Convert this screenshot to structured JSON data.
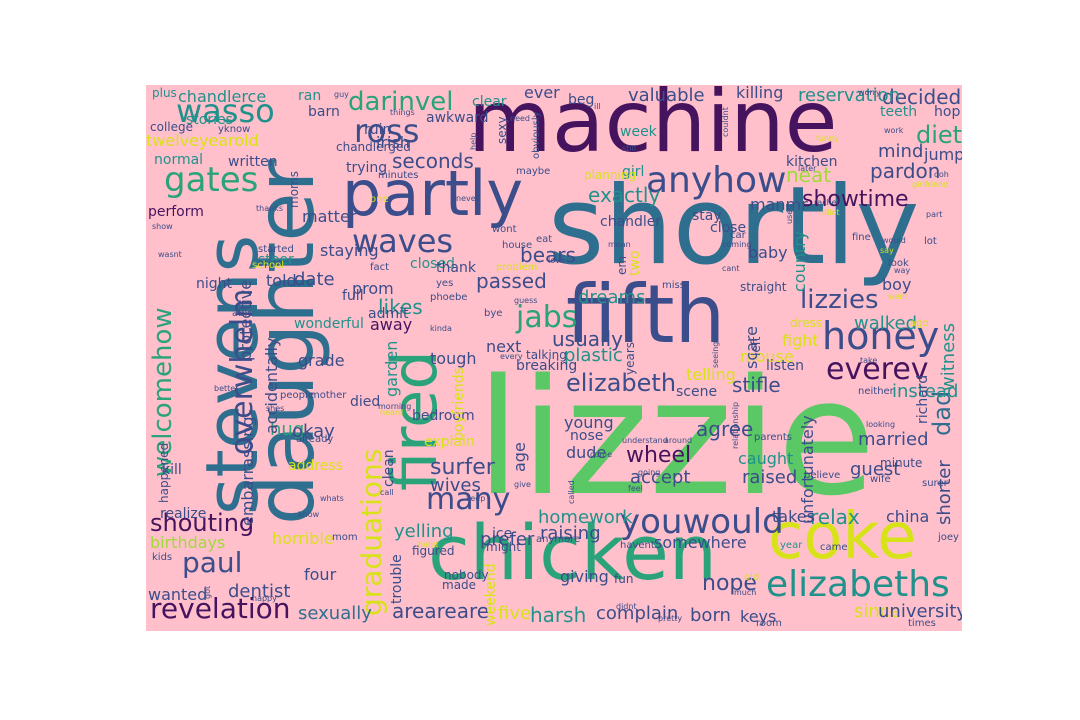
{
  "palette": {
    "background": "#ffc0cb",
    "dark_purple": "#46145f",
    "indigo": "#3b4d8a",
    "steel_blue": "#2e6e8e",
    "teal": "#21918c",
    "sea_green": "#2aa37a",
    "green": "#5ac864",
    "lime": "#a0da39",
    "yellow": "#d8e219"
  },
  "words": [
    {
      "text": "lizzie",
      "color": "green"
    },
    {
      "text": "shortly",
      "color": "steel_blue"
    },
    {
      "text": "machine",
      "color": "dark_purple"
    },
    {
      "text": "daughter",
      "color": "steel_blue"
    },
    {
      "text": "chicken",
      "color": "sea_green"
    },
    {
      "text": "fifth",
      "color": "indigo"
    },
    {
      "text": "stevens",
      "color": "steel_blue"
    },
    {
      "text": "partly",
      "color": "indigo"
    },
    {
      "text": "coke",
      "color": "yellow"
    },
    {
      "text": "fired",
      "color": "sea_green"
    },
    {
      "text": "honey",
      "color": "indigo"
    },
    {
      "text": "anyhow",
      "color": "indigo"
    },
    {
      "text": "elizabeths",
      "color": "teal"
    },
    {
      "text": "youwould",
      "color": "indigo"
    },
    {
      "text": "waves",
      "color": "indigo"
    },
    {
      "text": "gates",
      "color": "sea_green"
    },
    {
      "text": "ross",
      "color": "indigo"
    },
    {
      "text": "wasso",
      "color": "teal"
    },
    {
      "text": "overwhelm",
      "color": "indigo"
    },
    {
      "text": "welcomehow",
      "color": "sea_green"
    },
    {
      "text": "revelation",
      "color": "dark_purple"
    },
    {
      "text": "paul",
      "color": "indigo"
    },
    {
      "text": "jabs",
      "color": "sea_green"
    },
    {
      "text": "many",
      "color": "indigo"
    },
    {
      "text": "everev",
      "color": "dark_purple"
    },
    {
      "text": "lizzies",
      "color": "indigo"
    },
    {
      "text": "elizabeth",
      "color": "indigo"
    },
    {
      "text": "graduations",
      "color": "yellow"
    },
    {
      "text": "shouting",
      "color": "dark_purple"
    },
    {
      "text": "darinvel",
      "color": "sea_green"
    },
    {
      "text": "diet",
      "color": "sea_green"
    },
    {
      "text": "showtime",
      "color": "dark_purple"
    },
    {
      "text": "dad",
      "color": "steel_blue"
    },
    {
      "text": "surfer",
      "color": "indigo"
    },
    {
      "text": "wheel",
      "color": "dark_purple"
    },
    {
      "text": "harsh",
      "color": "teal"
    },
    {
      "text": "five",
      "color": "yellow"
    },
    {
      "text": "areareare",
      "color": "indigo"
    },
    {
      "text": "sexually",
      "color": "steel_blue"
    },
    {
      "text": "nope",
      "color": "indigo"
    },
    {
      "text": "since",
      "color": "yellow"
    },
    {
      "text": "university",
      "color": "indigo"
    },
    {
      "text": "complain",
      "color": "indigo"
    },
    {
      "text": "born",
      "color": "indigo"
    },
    {
      "text": "keys",
      "color": "indigo"
    },
    {
      "text": "decided",
      "color": "indigo"
    },
    {
      "text": "reservation",
      "color": "teal"
    },
    {
      "text": "valuable",
      "color": "indigo"
    },
    {
      "text": "killing",
      "color": "indigo"
    },
    {
      "text": "seconds",
      "color": "indigo"
    },
    {
      "text": "exactly",
      "color": "teal"
    },
    {
      "text": "pardon",
      "color": "indigo"
    },
    {
      "text": "neat",
      "color": "lime"
    },
    {
      "text": "mind",
      "color": "indigo"
    },
    {
      "text": "jump",
      "color": "indigo"
    },
    {
      "text": "stifle",
      "color": "indigo"
    },
    {
      "text": "usually",
      "color": "indigo"
    },
    {
      "text": "passed",
      "color": "indigo"
    },
    {
      "text": "bears",
      "color": "indigo"
    },
    {
      "text": "likes",
      "color": "teal"
    },
    {
      "text": "date",
      "color": "indigo"
    },
    {
      "text": "dreams",
      "color": "teal"
    },
    {
      "text": "plastic",
      "color": "teal"
    },
    {
      "text": "walked",
      "color": "teal"
    },
    {
      "text": "witness",
      "color": "teal"
    },
    {
      "text": "instead",
      "color": "teal"
    },
    {
      "text": "boy",
      "color": "indigo"
    },
    {
      "text": "agree",
      "color": "indigo"
    },
    {
      "text": "accept",
      "color": "indigo"
    },
    {
      "text": "raised",
      "color": "indigo"
    },
    {
      "text": "caught",
      "color": "teal"
    },
    {
      "text": "guest",
      "color": "indigo"
    },
    {
      "text": "relax",
      "color": "teal"
    },
    {
      "text": "takes",
      "color": "indigo"
    },
    {
      "text": "china",
      "color": "indigo"
    },
    {
      "text": "married",
      "color": "indigo"
    },
    {
      "text": "unfortunately",
      "color": "indigo"
    },
    {
      "text": "shorter",
      "color": "indigo"
    },
    {
      "text": "wives",
      "color": "indigo"
    },
    {
      "text": "homework",
      "color": "teal"
    },
    {
      "text": "yelling",
      "color": "teal"
    },
    {
      "text": "raising",
      "color": "indigo"
    },
    {
      "text": "prefer",
      "color": "indigo"
    },
    {
      "text": "somewhere",
      "color": "indigo"
    },
    {
      "text": "giving",
      "color": "indigo"
    },
    {
      "text": "dentist",
      "color": "indigo"
    },
    {
      "text": "wanted",
      "color": "indigo"
    },
    {
      "text": "horrible",
      "color": "yellow"
    },
    {
      "text": "birthdays",
      "color": "lime"
    },
    {
      "text": "realize",
      "color": "indigo"
    },
    {
      "text": "embarrassing",
      "color": "indigo"
    },
    {
      "text": "four",
      "color": "indigo"
    },
    {
      "text": "trouble",
      "color": "indigo"
    },
    {
      "text": "clean",
      "color": "indigo"
    },
    {
      "text": "address",
      "color": "yellow"
    },
    {
      "text": "hug",
      "color": "sea_green"
    },
    {
      "text": "okay",
      "color": "indigo"
    },
    {
      "text": "grade",
      "color": "indigo"
    },
    {
      "text": "accidentally",
      "color": "indigo"
    },
    {
      "text": "protective",
      "color": "indigo"
    },
    {
      "text": "night",
      "color": "indigo"
    },
    {
      "text": "told",
      "color": "indigo"
    },
    {
      "text": "staying",
      "color": "indigo"
    },
    {
      "text": "matter",
      "color": "indigo"
    },
    {
      "text": "perform",
      "color": "dark_purple"
    },
    {
      "text": "normal",
      "color": "teal"
    },
    {
      "text": "twelveyearold",
      "color": "yellow"
    },
    {
      "text": "chandlerce",
      "color": "teal"
    },
    {
      "text": "stories",
      "color": "teal"
    },
    {
      "text": "college",
      "color": "indigo"
    },
    {
      "text": "plus",
      "color": "teal"
    },
    {
      "text": "ran",
      "color": "teal"
    },
    {
      "text": "barn",
      "color": "indigo"
    },
    {
      "text": "irish",
      "color": "indigo"
    },
    {
      "text": "ruin",
      "color": "indigo"
    },
    {
      "text": "trying",
      "color": "indigo"
    },
    {
      "text": "written",
      "color": "indigo"
    },
    {
      "text": "prom",
      "color": "indigo"
    },
    {
      "text": "admit",
      "color": "indigo"
    },
    {
      "text": "away",
      "color": "dark_purple"
    },
    {
      "text": "garden",
      "color": "teal"
    },
    {
      "text": "next",
      "color": "indigo"
    },
    {
      "text": "tough",
      "color": "indigo"
    },
    {
      "text": "died",
      "color": "indigo"
    },
    {
      "text": "bedroom",
      "color": "indigo"
    },
    {
      "text": "young",
      "color": "indigo"
    },
    {
      "text": "nose",
      "color": "indigo"
    },
    {
      "text": "dude",
      "color": "indigo"
    },
    {
      "text": "age",
      "color": "indigo"
    },
    {
      "text": "ice",
      "color": "indigo"
    },
    {
      "text": "scene",
      "color": "indigo"
    },
    {
      "text": "telling",
      "color": "yellow"
    },
    {
      "text": "mouse",
      "color": "yellow"
    },
    {
      "text": "scare",
      "color": "indigo"
    },
    {
      "text": "fight",
      "color": "yellow"
    },
    {
      "text": "country",
      "color": "teal"
    },
    {
      "text": "baby",
      "color": "indigo"
    },
    {
      "text": "kitchen",
      "color": "indigo"
    },
    {
      "text": "manmr",
      "color": "indigo"
    },
    {
      "text": "close",
      "color": "indigo"
    },
    {
      "text": "stay",
      "color": "indigo"
    },
    {
      "text": "girl",
      "color": "teal"
    },
    {
      "text": "chandler",
      "color": "indigo"
    },
    {
      "text": "week",
      "color": "teal"
    },
    {
      "text": "ever",
      "color": "indigo"
    },
    {
      "text": "beg",
      "color": "indigo"
    },
    {
      "text": "clear",
      "color": "teal"
    },
    {
      "text": "awkward",
      "color": "indigo"
    },
    {
      "text": "teeth",
      "color": "teal"
    },
    {
      "text": "hop",
      "color": "indigo"
    },
    {
      "text": "listen",
      "color": "indigo"
    },
    {
      "text": "full",
      "color": "indigo"
    },
    {
      "text": "closed",
      "color": "teal"
    },
    {
      "text": "thank",
      "color": "indigo"
    },
    {
      "text": "wonderful",
      "color": "teal"
    },
    {
      "text": "boyfriends",
      "color": "yellow"
    },
    {
      "text": "breaking",
      "color": "indigo"
    },
    {
      "text": "explain",
      "color": "yellow"
    },
    {
      "text": "weekend",
      "color": "yellow"
    },
    {
      "text": "richard",
      "color": "indigo"
    },
    {
      "text": "kill",
      "color": "indigo"
    },
    {
      "text": "happened",
      "color": "indigo"
    },
    {
      "text": "steer",
      "color": "teal"
    },
    {
      "text": "two",
      "color": "yellow"
    },
    {
      "text": "em",
      "color": "indigo"
    },
    {
      "text": "chandlerged",
      "color": "indigo"
    },
    {
      "text": "minute",
      "color": "indigo"
    },
    {
      "text": "figured",
      "color": "indigo"
    },
    {
      "text": "nobody",
      "color": "indigo"
    },
    {
      "text": "made",
      "color": "indigo"
    },
    {
      "text": "fun",
      "color": "indigo"
    },
    {
      "text": "might",
      "color": "indigo"
    },
    {
      "text": "planning",
      "color": "yellow"
    },
    {
      "text": "talking",
      "color": "indigo"
    },
    {
      "text": "years",
      "color": "indigo"
    },
    {
      "text": "yknow",
      "color": "indigo"
    },
    {
      "text": "minutes",
      "color": "indigo"
    },
    {
      "text": "moms",
      "color": "indigo"
    },
    {
      "text": "maybe",
      "color": "indigo"
    },
    {
      "text": "obviously",
      "color": "indigo"
    },
    {
      "text": "sexy",
      "color": "indigo"
    },
    {
      "text": "house",
      "color": "indigo"
    },
    {
      "text": "eat",
      "color": "indigo"
    },
    {
      "text": "wont",
      "color": "indigo"
    },
    {
      "text": "problem",
      "color": "yellow"
    },
    {
      "text": "love",
      "color": "indigo"
    },
    {
      "text": "miss",
      "color": "indigo"
    },
    {
      "text": "straight",
      "color": "indigo"
    },
    {
      "text": "left",
      "color": "indigo"
    },
    {
      "text": "dress",
      "color": "yellow"
    },
    {
      "text": "fine",
      "color": "indigo"
    },
    {
      "text": "look",
      "color": "indigo"
    },
    {
      "text": "lot",
      "color": "indigo"
    },
    {
      "text": "ago",
      "color": "yellow"
    },
    {
      "text": "neither",
      "color": "indigo"
    },
    {
      "text": "people",
      "color": "indigo"
    },
    {
      "text": "mother",
      "color": "indigo"
    },
    {
      "text": "already",
      "color": "indigo"
    },
    {
      "text": "parents",
      "color": "indigo"
    },
    {
      "text": "believe",
      "color": "indigo"
    },
    {
      "text": "wife",
      "color": "indigo"
    },
    {
      "text": "surer",
      "color": "indigo"
    },
    {
      "text": "joey",
      "color": "indigo"
    },
    {
      "text": "times",
      "color": "indigo"
    },
    {
      "text": "room",
      "color": "indigo"
    },
    {
      "text": "came",
      "color": "indigo"
    },
    {
      "text": "year",
      "color": "teal"
    },
    {
      "text": "havent",
      "color": "indigo"
    },
    {
      "text": "anymore",
      "color": "indigo"
    },
    {
      "text": "kids",
      "color": "indigo"
    },
    {
      "text": "mom",
      "color": "indigo"
    },
    {
      "text": "know",
      "color": "indigo"
    },
    {
      "text": "worry",
      "color": "indigo"
    },
    {
      "text": "work",
      "color": "indigo"
    },
    {
      "text": "girlfriend",
      "color": "yellow"
    },
    {
      "text": "part",
      "color": "indigo"
    },
    {
      "text": "ooh",
      "color": "indigo"
    },
    {
      "text": "guy",
      "color": "indigo"
    },
    {
      "text": "things",
      "color": "indigo"
    },
    {
      "text": "help",
      "color": "indigo"
    },
    {
      "text": "show",
      "color": "indigo"
    },
    {
      "text": "wasnt",
      "color": "indigo"
    },
    {
      "text": "started",
      "color": "indigo"
    },
    {
      "text": "open",
      "color": "indigo"
    },
    {
      "text": "school",
      "color": "yellow"
    },
    {
      "text": "able",
      "color": "indigo"
    },
    {
      "text": "fact",
      "color": "indigo"
    },
    {
      "text": "yes",
      "color": "indigo"
    },
    {
      "text": "phoebe",
      "color": "indigo"
    },
    {
      "text": "bye",
      "color": "indigo"
    },
    {
      "text": "guess",
      "color": "indigo"
    },
    {
      "text": "mean",
      "color": "indigo"
    },
    {
      "text": "coming",
      "color": "indigo"
    },
    {
      "text": "car",
      "color": "indigo"
    },
    {
      "text": "cant",
      "color": "indigo"
    },
    {
      "text": "seeing",
      "color": "indigo"
    },
    {
      "text": "take",
      "color": "indigo"
    },
    {
      "text": "way",
      "color": "indigo"
    },
    {
      "text": "say",
      "color": "yellow"
    },
    {
      "text": "would",
      "color": "indigo"
    },
    {
      "text": "went",
      "color": "yellow"
    },
    {
      "text": "funny",
      "color": "yellow"
    },
    {
      "text": "rachel",
      "color": "indigo"
    },
    {
      "text": "idiot",
      "color": "yellow"
    },
    {
      "text": "still",
      "color": "indigo"
    },
    {
      "text": "couldnt",
      "color": "indigo"
    },
    {
      "text": "ill",
      "color": "indigo"
    },
    {
      "text": "understand",
      "color": "indigo"
    },
    {
      "text": "around",
      "color": "indigo"
    },
    {
      "text": "going",
      "color": "indigo"
    },
    {
      "text": "feel",
      "color": "indigo"
    },
    {
      "text": "called",
      "color": "indigo"
    },
    {
      "text": "give",
      "color": "indigo"
    },
    {
      "text": "come",
      "color": "indigo"
    },
    {
      "text": "didnt",
      "color": "indigo"
    },
    {
      "text": "pretty",
      "color": "indigo"
    },
    {
      "text": "old",
      "color": "yellow"
    },
    {
      "text": "much",
      "color": "indigo"
    },
    {
      "text": "looking",
      "color": "indigo"
    },
    {
      "text": "better",
      "color": "indigo"
    },
    {
      "text": "shes",
      "color": "indigo"
    },
    {
      "text": "call",
      "color": "indigo"
    },
    {
      "text": "keep",
      "color": "indigo"
    },
    {
      "text": "morning",
      "color": "indigo"
    },
    {
      "text": "happy",
      "color": "indigo"
    },
    {
      "text": "got",
      "color": "indigo"
    },
    {
      "text": "one",
      "color": "yellow"
    },
    {
      "text": "never",
      "color": "indigo"
    },
    {
      "text": "need",
      "color": "indigo"
    },
    {
      "text": "relationship",
      "color": "indigo"
    },
    {
      "text": "thanks",
      "color": "indigo"
    },
    {
      "text": "heard",
      "color": "yellow"
    },
    {
      "text": "hand",
      "color": "yellow"
    },
    {
      "text": "kinda",
      "color": "indigo"
    },
    {
      "text": "used",
      "color": "indigo"
    },
    {
      "text": "every",
      "color": "indigo"
    },
    {
      "text": "whats",
      "color": "indigo"
    },
    {
      "text": "later",
      "color": "indigo"
    }
  ]
}
